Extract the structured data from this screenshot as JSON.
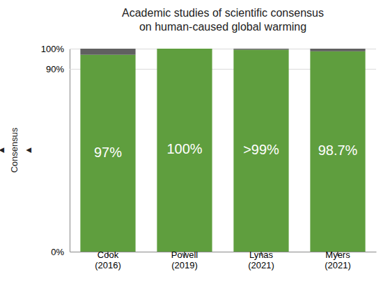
{
  "chart_data": {
    "type": "bar",
    "stacked": true,
    "title": "Academic studies of scientific consensus\non human-caused global warming",
    "y_label": "▲\nConsensus\n▲",
    "categories": [
      "Cook\n(2016)",
      "Powell\n(2019)",
      "Lynas\n(2021)",
      "Myers\n(2021)"
    ],
    "series": [
      {
        "color": "#5f9e3e",
        "values": [
          97,
          100,
          99.5,
          98.7
        ],
        "value_labels": [
          "97%",
          "100%",
          ">99%",
          "98.7%"
        ]
      },
      {
        "color": "#606060",
        "values": [
          3,
          0,
          0.5,
          1.3
        ]
      }
    ],
    "ylim": [
      0,
      100
    ],
    "yticks": [
      {
        "value": 0,
        "label": "0%"
      },
      {
        "value": 90,
        "label": "90%"
      },
      {
        "value": 100,
        "label": "100%"
      }
    ],
    "grid": true,
    "data_labels": true
  }
}
